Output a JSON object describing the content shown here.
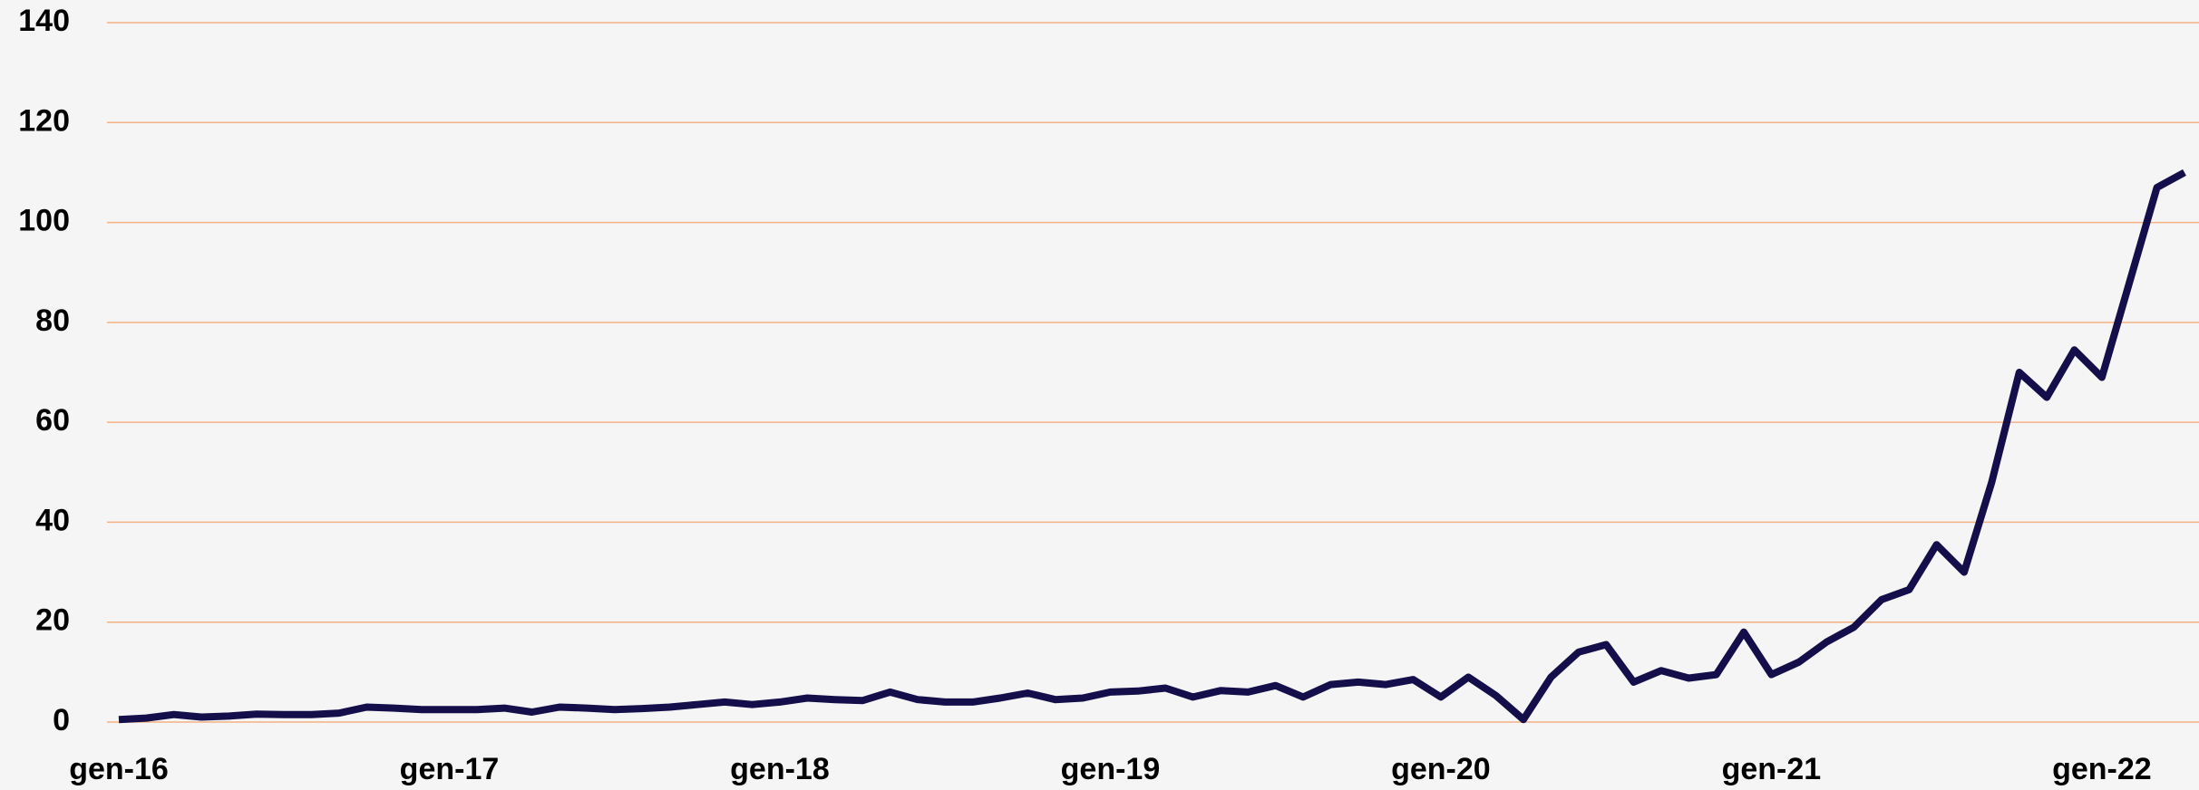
{
  "chart_data": {
    "type": "line",
    "categories": [
      "gen-16",
      null,
      null,
      null,
      null,
      null,
      null,
      null,
      null,
      null,
      null,
      null,
      "gen-17",
      null,
      null,
      null,
      null,
      null,
      null,
      null,
      null,
      null,
      null,
      null,
      "gen-18",
      null,
      null,
      null,
      null,
      null,
      null,
      null,
      null,
      null,
      null,
      null,
      "gen-19",
      null,
      null,
      null,
      null,
      null,
      null,
      null,
      null,
      null,
      null,
      null,
      "gen-20",
      null,
      null,
      null,
      null,
      null,
      null,
      null,
      null,
      null,
      null,
      null,
      "gen-21",
      null,
      null,
      null,
      null,
      null,
      null,
      null,
      null,
      null,
      null,
      null,
      "gen-22",
      null,
      null,
      null
    ],
    "series": [
      {
        "color": "#140f4a",
        "values": [
          0.5,
          0.8,
          1.5,
          1,
          1.2,
          1.6,
          1.5,
          1.5,
          1.8,
          3,
          2.8,
          2.5,
          2.5,
          2.5,
          2.8,
          2,
          3,
          2.8,
          2.5,
          2.7,
          3,
          3.5,
          4,
          3.5,
          4,
          4.8,
          4.5,
          4.3,
          6,
          4.5,
          4,
          4,
          4.8,
          5.8,
          4.5,
          4.8,
          6,
          6.2,
          6.8,
          5,
          6.3,
          6,
          7.3,
          5,
          7.5,
          8,
          7.5,
          8.5,
          5,
          9,
          5.3,
          0.5,
          9,
          14,
          15.5,
          8,
          10.3,
          8.8,
          9.5,
          18,
          9.5,
          12,
          16,
          19,
          24.5,
          26.5,
          35.5,
          30,
          48,
          70,
          65,
          74.5,
          69,
          88,
          107,
          110
        ]
      }
    ],
    "ylim": [
      0,
      140
    ],
    "yticks": [
      0,
      20,
      40,
      60,
      80,
      100,
      120,
      140
    ],
    "grid": true,
    "grid_color": "#f4b183"
  }
}
